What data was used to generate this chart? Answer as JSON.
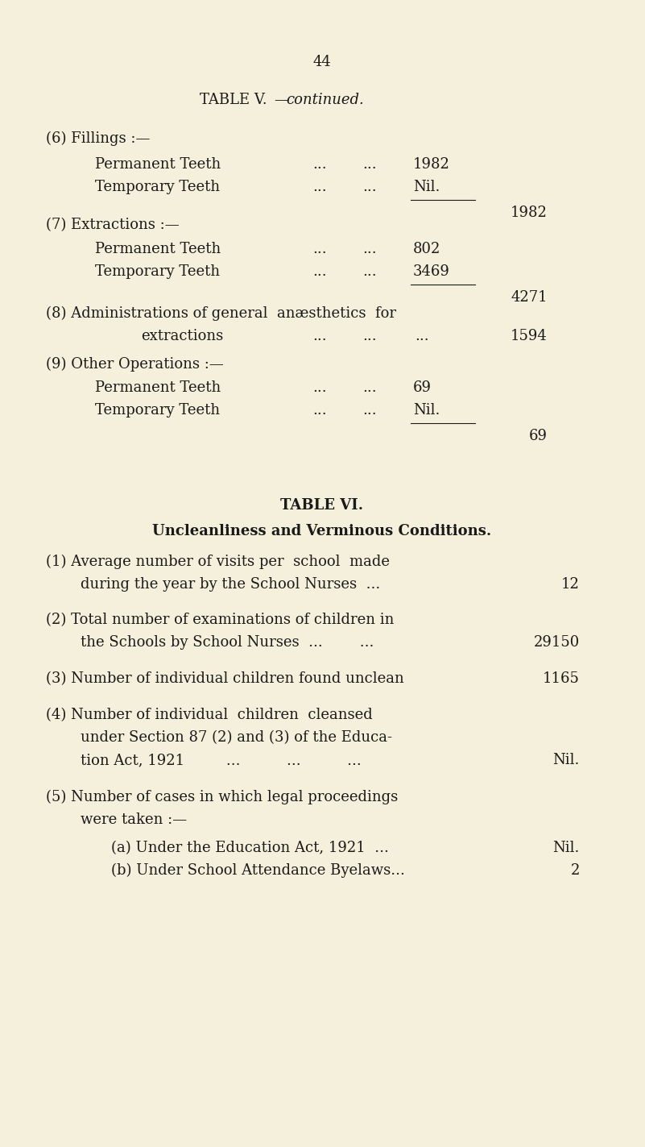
{
  "bg_color": "#f5f0dc",
  "text_color": "#1a1a1a",
  "page_number": "44",
  "table5_title_roman": "TABLE V.",
  "table5_title_italic": "—continued.",
  "table6_title": "TABLE VI.",
  "table6_subtitle": "Uncleanliness and Verminous Conditions."
}
